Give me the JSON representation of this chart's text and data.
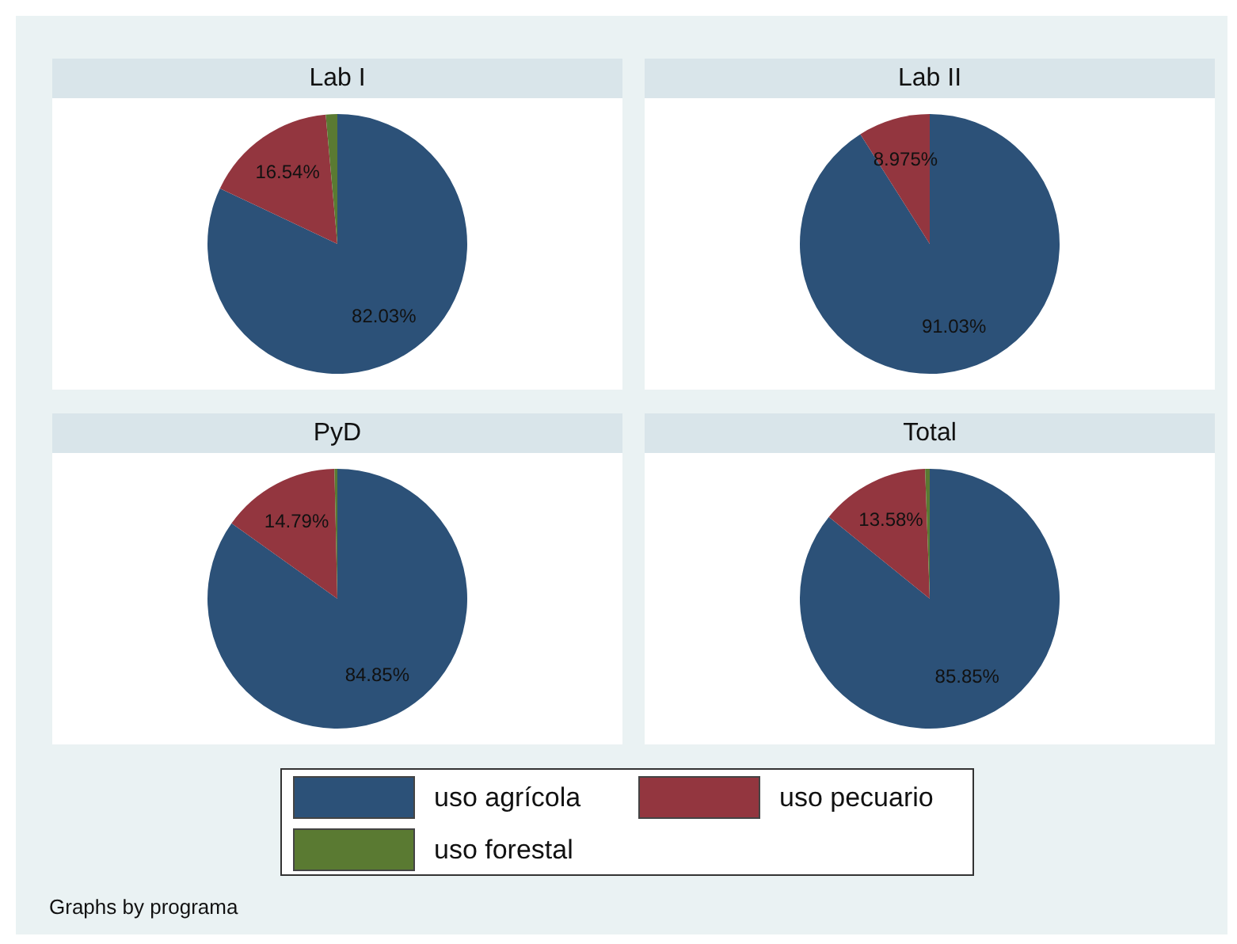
{
  "chart_data": [
    {
      "type": "pie",
      "title": "Lab I",
      "categories": [
        "uso agrícola",
        "uso pecuario",
        "uso forestal"
      ],
      "values": [
        82.03,
        16.54,
        1.43
      ],
      "colors": [
        "#2c5178",
        "#93363f",
        "#5a7a32"
      ],
      "value_labels": [
        "82.03%",
        "16.54%",
        null
      ],
      "legend": "bottom"
    },
    {
      "type": "pie",
      "title": "Lab II",
      "categories": [
        null,
        null,
        null
      ],
      "values": [
        91.03,
        8.975,
        0
      ],
      "colors": [
        "#2c5178",
        "#93363f",
        "#5a7a32"
      ],
      "value_labels": [
        "91.03%",
        "8.975%",
        null
      ]
    },
    {
      "type": "pie",
      "title": "PyD",
      "categories": [
        null,
        null,
        null
      ],
      "values": [
        84.85,
        14.79,
        0.36
      ],
      "colors": [
        "#2c5178",
        "#93363f",
        "#5a7a32"
      ],
      "value_labels": [
        "84.85%",
        "14.79%",
        null
      ]
    },
    {
      "type": "pie",
      "title": "Total",
      "categories": [
        null,
        null,
        null
      ],
      "values": [
        85.85,
        13.58,
        0.57
      ],
      "colors": [
        "#2c5178",
        "#93363f",
        "#5a7a32"
      ],
      "value_labels": [
        "85.85%",
        "13.58%",
        null
      ],
      "annotations": [
        "Graphs by programa"
      ]
    }
  ]
}
